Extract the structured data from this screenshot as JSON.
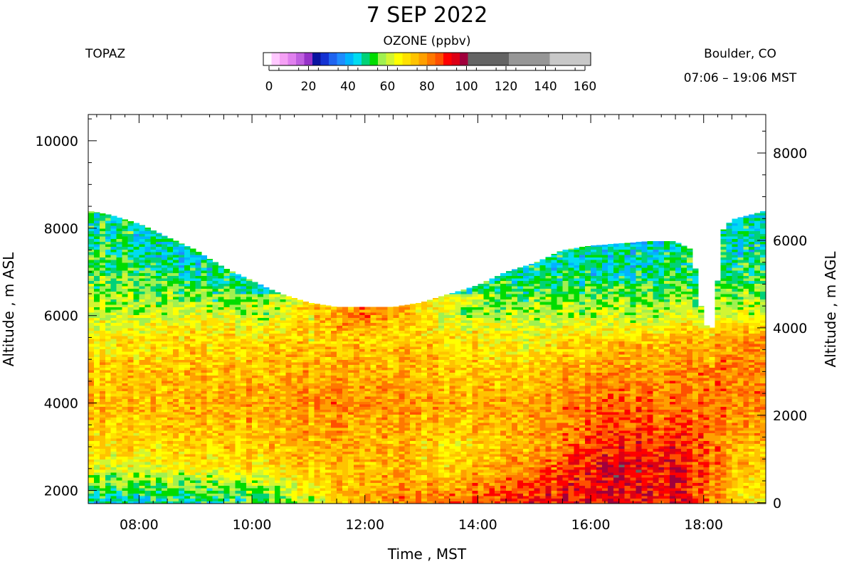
{
  "header": {
    "title": "7 SEP 2022",
    "station": "TOPAZ",
    "location": "Boulder, CO",
    "time_range": "07:06 – 19:06 MST"
  },
  "colorbar": {
    "title": "OZONE (ppbv)",
    "tick_labels": [
      "0",
      "20",
      "40",
      "60",
      "80",
      "100",
      "120",
      "140",
      "160"
    ],
    "bins": [
      {
        "from": 0,
        "to": 4,
        "color": "#ffffff"
      },
      {
        "from": 4,
        "to": 8,
        "color": "#ffc8ff"
      },
      {
        "from": 8,
        "to": 12,
        "color": "#f5a0f5"
      },
      {
        "from": 12,
        "to": 16,
        "color": "#e080ee"
      },
      {
        "from": 16,
        "to": 20,
        "color": "#c060e0"
      },
      {
        "from": 20,
        "to": 24,
        "color": "#9632c8"
      },
      {
        "from": 24,
        "to": 28,
        "color": "#0a14a0"
      },
      {
        "from": 28,
        "to": 32,
        "color": "#1432d2"
      },
      {
        "from": 32,
        "to": 36,
        "color": "#1e64f0"
      },
      {
        "from": 36,
        "to": 40,
        "color": "#1e8cff"
      },
      {
        "from": 40,
        "to": 44,
        "color": "#00b4ff"
      },
      {
        "from": 44,
        "to": 48,
        "color": "#00dcf0"
      },
      {
        "from": 48,
        "to": 52,
        "color": "#00d278"
      },
      {
        "from": 52,
        "to": 56,
        "color": "#00dc00"
      },
      {
        "from": 56,
        "to": 60,
        "color": "#a0f050"
      },
      {
        "from": 60,
        "to": 64,
        "color": "#d2f532"
      },
      {
        "from": 64,
        "to": 68,
        "color": "#ffff00"
      },
      {
        "from": 68,
        "to": 72,
        "color": "#ffe100"
      },
      {
        "from": 72,
        "to": 76,
        "color": "#ffc300"
      },
      {
        "from": 76,
        "to": 80,
        "color": "#ffa000"
      },
      {
        "from": 80,
        "to": 84,
        "color": "#ff7800"
      },
      {
        "from": 84,
        "to": 88,
        "color": "#ff5000"
      },
      {
        "from": 88,
        "to": 92,
        "color": "#ff0000"
      },
      {
        "from": 92,
        "to": 96,
        "color": "#dc0014"
      },
      {
        "from": 96,
        "to": 100,
        "color": "#a0003c"
      },
      {
        "from": 100,
        "to": 120,
        "color": "#646464"
      },
      {
        "from": 120,
        "to": 140,
        "color": "#969696"
      },
      {
        "from": 140,
        "to": 160,
        "color": "#c8c8c8"
      }
    ]
  },
  "chart_data": {
    "type": "heatmap",
    "title": "7 SEP 2022",
    "variable": "OZONE (ppbv)",
    "xlabel": "Time , MST",
    "ylabel_left": "Altitude , m ASL",
    "ylabel_right": "Altitude , m AGL",
    "xlim": [
      "07:06",
      "19:06"
    ],
    "ylim_left": [
      1700,
      10600
    ],
    "ylim_right": [
      -20,
      8880
    ],
    "x_tick_labels": [
      "08:00",
      "10:00",
      "12:00",
      "14:00",
      "16:00",
      "18:00"
    ],
    "y_tick_labels_left": [
      "2000",
      "4000",
      "6000",
      "8000",
      "10000"
    ],
    "y_tick_labels_right": [
      "0",
      "2000",
      "4000",
      "6000",
      "8000"
    ],
    "grid": false,
    "top_of_data_m_asl": [
      {
        "time": "07:06",
        "alt": 8400
      },
      {
        "time": "07:30",
        "alt": 8300
      },
      {
        "time": "08:00",
        "alt": 8100
      },
      {
        "time": "08:30",
        "alt": 7800
      },
      {
        "time": "09:00",
        "alt": 7500
      },
      {
        "time": "09:30",
        "alt": 7100
      },
      {
        "time": "10:00",
        "alt": 6800
      },
      {
        "time": "10:30",
        "alt": 6500
      },
      {
        "time": "11:00",
        "alt": 6300
      },
      {
        "time": "11:30",
        "alt": 6200
      },
      {
        "time": "12:00",
        "alt": 6200
      },
      {
        "time": "12:30",
        "alt": 6200
      },
      {
        "time": "13:00",
        "alt": 6300
      },
      {
        "time": "13:30",
        "alt": 6500
      },
      {
        "time": "14:00",
        "alt": 6700
      },
      {
        "time": "14:30",
        "alt": 7000
      },
      {
        "time": "15:00",
        "alt": 7200
      },
      {
        "time": "15:30",
        "alt": 7500
      },
      {
        "time": "16:00",
        "alt": 7600
      },
      {
        "time": "16:30",
        "alt": 7650
      },
      {
        "time": "17:00",
        "alt": 7700
      },
      {
        "time": "17:30",
        "alt": 7700
      },
      {
        "time": "17:48",
        "alt": 7500
      },
      {
        "time": "18:00",
        "alt": 5800
      },
      {
        "time": "18:12",
        "alt": 5700
      },
      {
        "time": "18:18",
        "alt": 7900
      },
      {
        "time": "18:30",
        "alt": 8200
      },
      {
        "time": "19:06",
        "alt": 8400
      }
    ],
    "ozone_ppbv_approx": {
      "altitudes_m_asl": [
        1800,
        2500,
        3000,
        3500,
        4000,
        4500,
        5000,
        5500,
        6000,
        6500,
        7000,
        7500,
        8000
      ],
      "columns": [
        {
          "time": "07:30",
          "values": [
            48,
            64,
            70,
            72,
            74,
            74,
            72,
            68,
            62,
            58,
            55,
            54,
            54
          ]
        },
        {
          "time": "09:00",
          "values": [
            50,
            66,
            72,
            74,
            76,
            75,
            73,
            70,
            64,
            56,
            52,
            50,
            null
          ]
        },
        {
          "time": "10:30",
          "values": [
            56,
            70,
            74,
            76,
            78,
            76,
            74,
            72,
            66,
            null,
            null,
            null,
            null
          ]
        },
        {
          "time": "12:00",
          "values": [
            78,
            76,
            76,
            78,
            80,
            78,
            76,
            76,
            86,
            null,
            null,
            null,
            null
          ]
        },
        {
          "time": "13:30",
          "values": [
            82,
            72,
            70,
            74,
            76,
            74,
            72,
            70,
            66,
            null,
            null,
            null,
            null
          ]
        },
        {
          "time": "15:00",
          "values": [
            90,
            82,
            76,
            76,
            78,
            74,
            70,
            66,
            60,
            56,
            52,
            null,
            null
          ]
        },
        {
          "time": "16:30",
          "values": [
            92,
            94,
            90,
            86,
            84,
            82,
            78,
            72,
            62,
            56,
            52,
            50,
            null
          ]
        },
        {
          "time": "17:30",
          "values": [
            90,
            92,
            88,
            84,
            82,
            80,
            78,
            74,
            62,
            56,
            54,
            52,
            null
          ]
        },
        {
          "time": "18:45",
          "values": [
            70,
            74,
            76,
            80,
            82,
            82,
            82,
            80,
            66,
            58,
            54,
            52,
            52
          ]
        }
      ]
    }
  }
}
